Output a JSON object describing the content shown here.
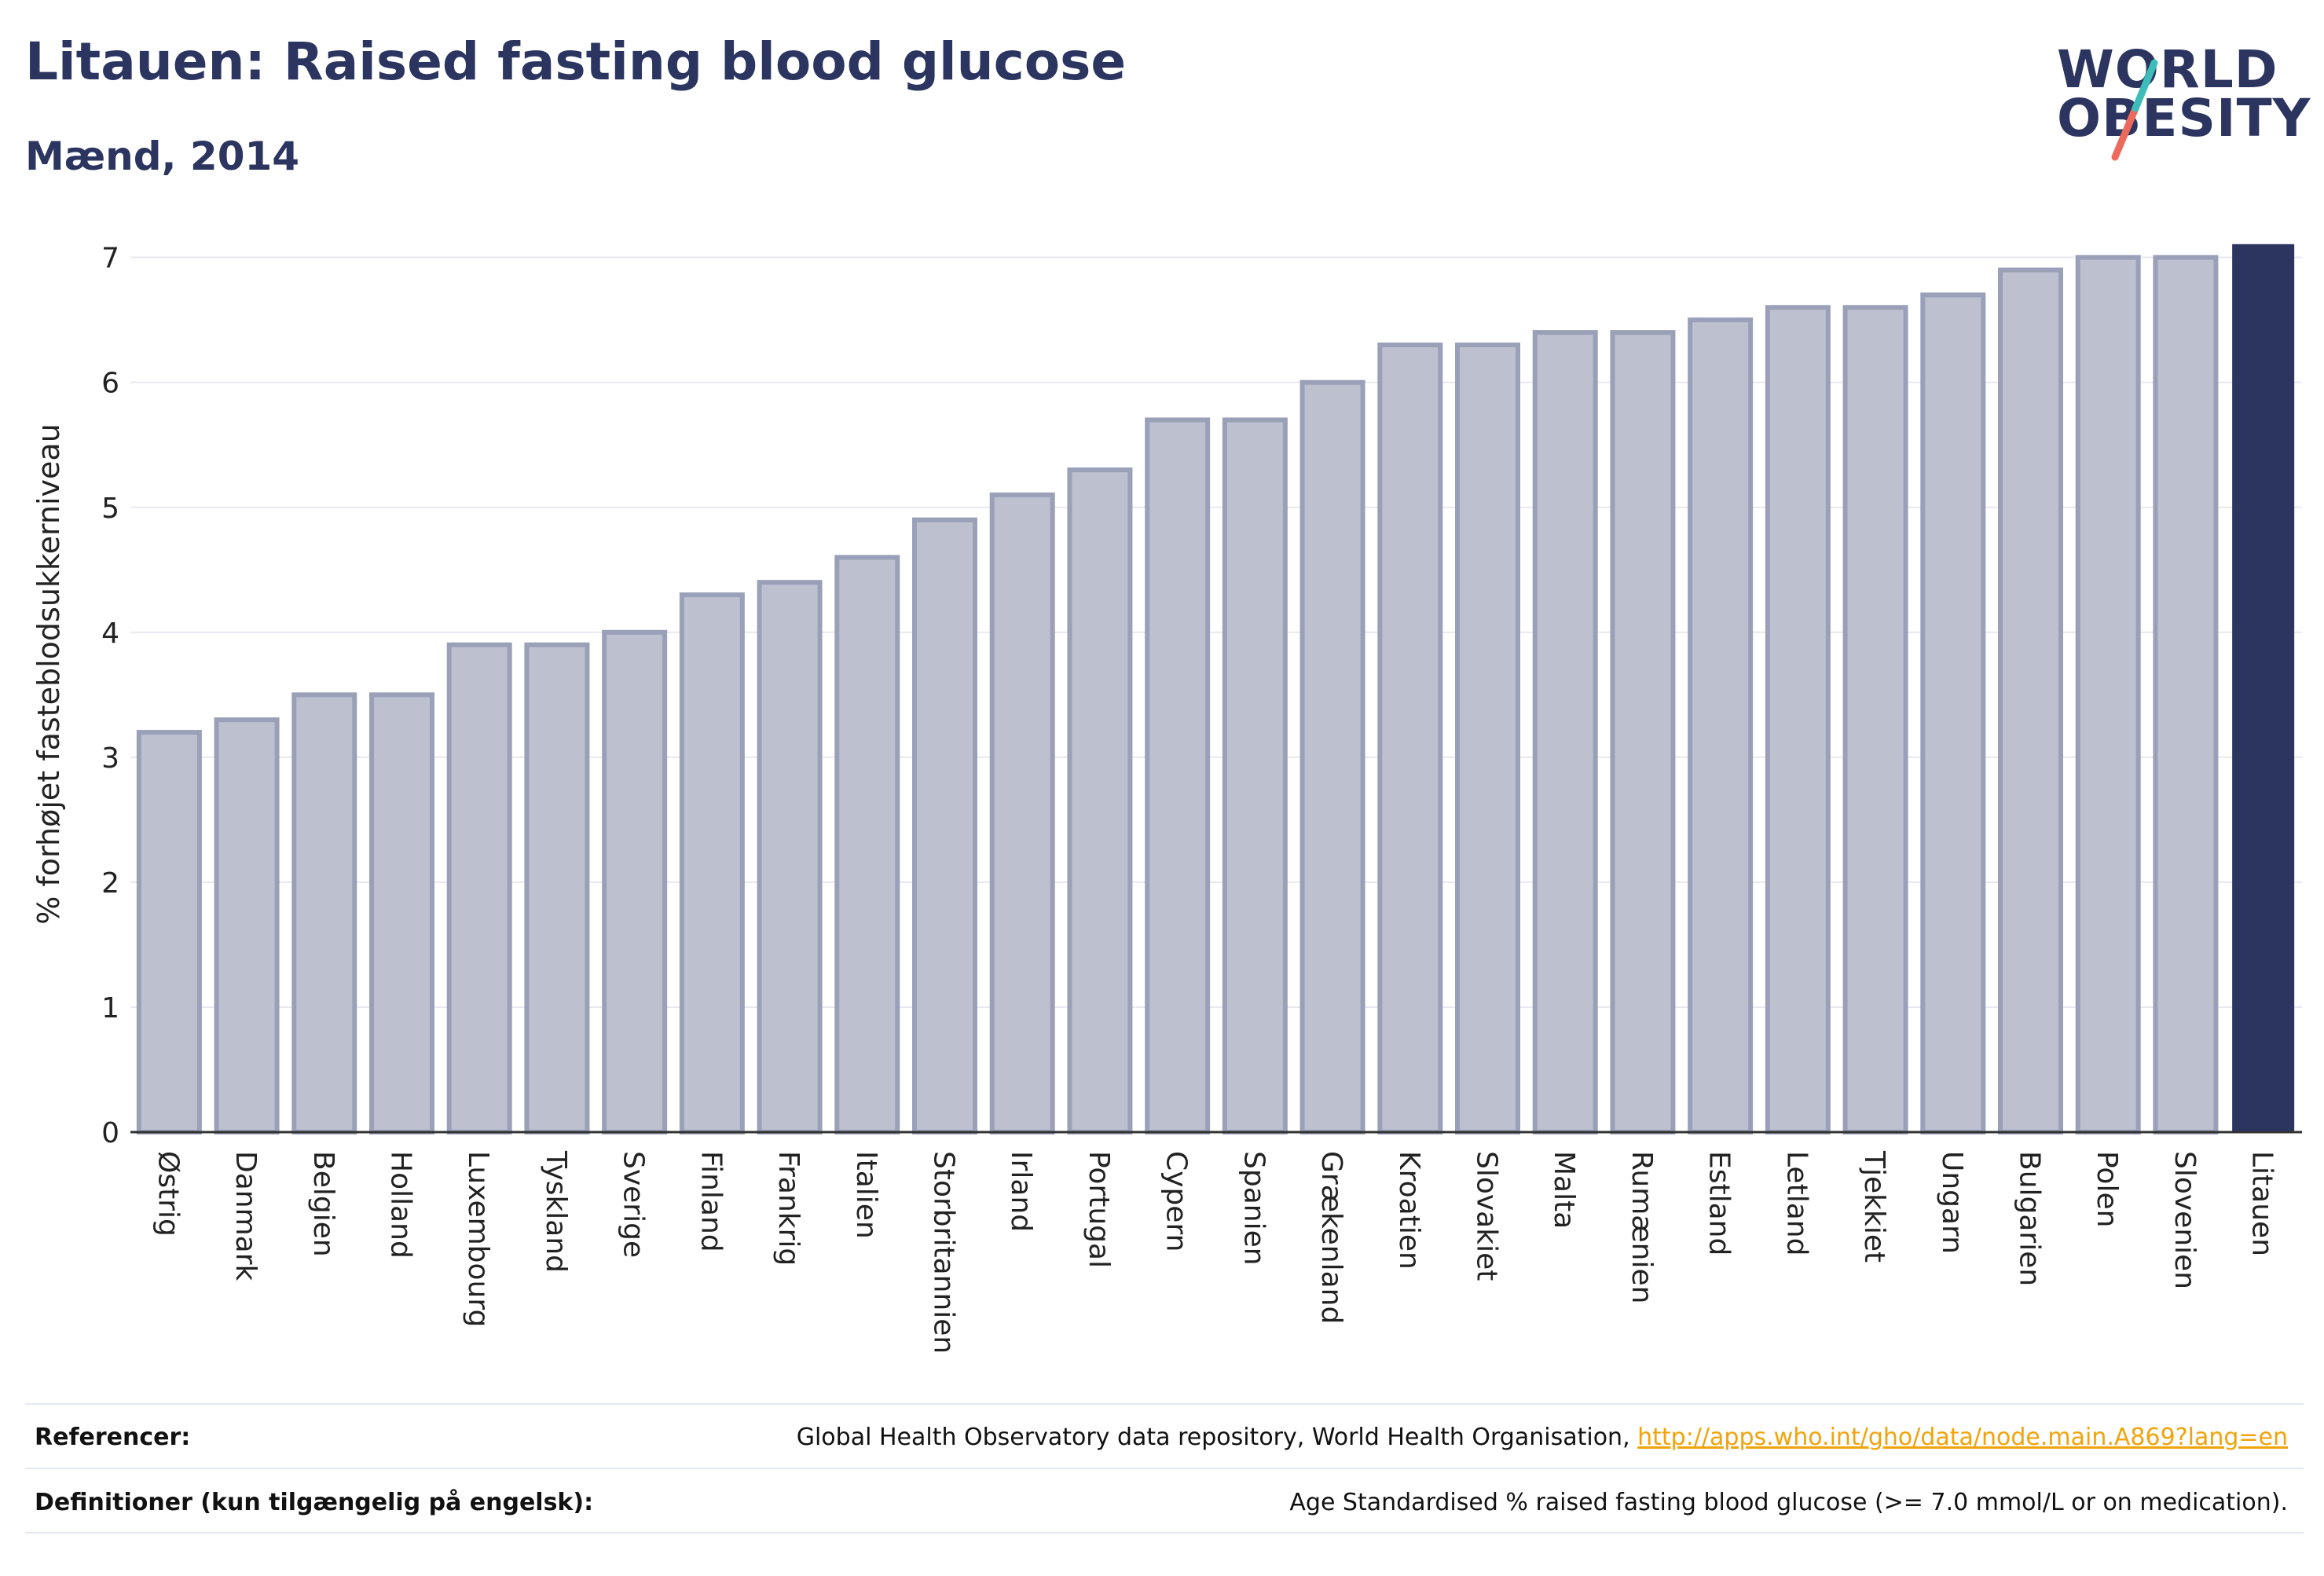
{
  "header": {
    "title": "Litauen: Raised fasting blood glucose",
    "subtitle": "Mænd, 2014"
  },
  "logo": {
    "line1": "WORLD",
    "line2": "OBESITY",
    "colors": {
      "text": "#2b3560",
      "slash_top": "#3dbdb8",
      "slash_bottom": "#ec6a5c"
    }
  },
  "colors": {
    "bar_fill": "#bcc0cf",
    "bar_stroke": "#9aa0b8",
    "highlight": "#2b3560",
    "grid": "#e8e9ef",
    "axis": "#333333"
  },
  "chart_data": {
    "type": "bar",
    "title": "Litauen: Raised fasting blood glucose",
    "subtitle": "Mænd, 2014",
    "xlabel": "",
    "ylabel": "% forhøjet fasteblodsukkerniveau",
    "ylim": [
      0,
      7.35
    ],
    "yticks": [
      0,
      1,
      2,
      3,
      4,
      5,
      6,
      7
    ],
    "grid": true,
    "highlight_category": "Litauen",
    "categories": [
      "Østrig",
      "Danmark",
      "Belgien",
      "Holland",
      "Luxembourg",
      "Tyskland",
      "Sverige",
      "Finland",
      "Frankrig",
      "Italien",
      "Storbritannien",
      "Irland",
      "Portugal",
      "Cypern",
      "Spanien",
      "Grækenland",
      "Kroatien",
      "Slovakiet",
      "Malta",
      "Rumænien",
      "Estland",
      "Letland",
      "Tjekkiet",
      "Ungarn",
      "Bulgarien",
      "Polen",
      "Slovenien",
      "Litauen"
    ],
    "values": [
      3.2,
      3.3,
      3.5,
      3.5,
      3.9,
      3.9,
      4.0,
      4.3,
      4.4,
      4.6,
      4.9,
      5.1,
      5.3,
      5.7,
      5.7,
      6.0,
      6.3,
      6.3,
      6.4,
      6.4,
      6.5,
      6.6,
      6.6,
      6.7,
      6.9,
      7.0,
      7.0,
      7.1
    ]
  },
  "footer": {
    "references_label": "Referencer:",
    "references_text": "Global Health Observatory data repository, World Health Organisation, ",
    "references_link": "http://apps.who.int/gho/data/node.main.A869?lang=en",
    "definitions_label": "Definitioner (kun tilgængelig på engelsk):",
    "definitions_text": "Age Standardised % raised fasting blood glucose (>= 7.0 mmol/L or on medication)."
  }
}
